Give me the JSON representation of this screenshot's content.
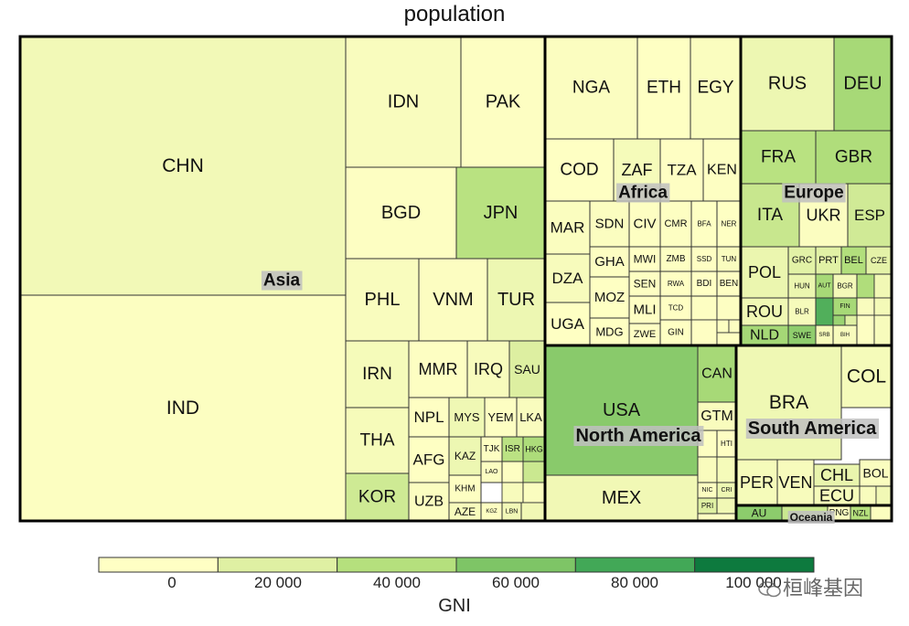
{
  "chart_data": {
    "type": "treemap",
    "title": "population",
    "fill_variable": "GNI",
    "legend": {
      "title": "GNI",
      "ticks": [
        "0",
        "20 000",
        "40 000",
        "60 000",
        "80 000",
        "100 000"
      ],
      "colors": [
        "#ffffc4",
        "#dff0a3",
        "#b5e07d",
        "#7ec566",
        "#42a857",
        "#0d7a3e"
      ]
    },
    "regions": [
      {
        "name": "Asia",
        "countries": [
          {
            "code": "CHN",
            "gni": 8000
          },
          {
            "code": "IND",
            "gni": 1800
          },
          {
            "code": "IDN",
            "gni": 3500
          },
          {
            "code": "PAK",
            "gni": 1500
          },
          {
            "code": "BGD",
            "gni": 1300
          },
          {
            "code": "JPN",
            "gni": 38000
          },
          {
            "code": "PHL",
            "gni": 3600
          },
          {
            "code": "VNM",
            "gni": 2100
          },
          {
            "code": "TUR",
            "gni": 11000
          },
          {
            "code": "IRN",
            "gni": 6000
          },
          {
            "code": "THA",
            "gni": 5900
          },
          {
            "code": "KOR",
            "gni": 28000
          },
          {
            "code": "MMR",
            "gni": 1200
          },
          {
            "code": "IRQ",
            "gni": 5000
          },
          {
            "code": "SAU",
            "gni": 21000
          },
          {
            "code": "NPL",
            "gni": 800
          },
          {
            "code": "MYS",
            "gni": 10000
          },
          {
            "code": "YEM",
            "gni": 1000
          },
          {
            "code": "LKA",
            "gni": 3800
          },
          {
            "code": "AFG",
            "gni": 600
          },
          {
            "code": "KAZ",
            "gni": 11000
          },
          {
            "code": "TJK",
            "gni": 1100
          },
          {
            "code": "ISR",
            "gni": 37000
          },
          {
            "code": "HKG",
            "gni": 43000
          },
          {
            "code": "UZB",
            "gni": 2200
          },
          {
            "code": "KHM",
            "gni": 1200
          },
          {
            "code": "LAO",
            "gni": 2000
          },
          {
            "code": "AZE",
            "gni": 4800
          },
          {
            "code": "KGZ",
            "gni": 1100
          },
          {
            "code": "LBN",
            "gni": 8000
          }
        ]
      },
      {
        "name": "Africa",
        "countries": [
          {
            "code": "NGA",
            "gni": 2500
          },
          {
            "code": "ETH",
            "gni": 600
          },
          {
            "code": "EGY",
            "gni": 3000
          },
          {
            "code": "COD",
            "gni": 400
          },
          {
            "code": "ZAF",
            "gni": 6000
          },
          {
            "code": "TZA",
            "gni": 900
          },
          {
            "code": "KEN",
            "gni": 1400
          },
          {
            "code": "MAR",
            "gni": 2900
          },
          {
            "code": "SDN",
            "gni": 2400
          },
          {
            "code": "CIV",
            "gni": 1500
          },
          {
            "code": "CMR",
            "gni": 1300
          },
          {
            "code": "BFA",
            "gni": 600
          },
          {
            "code": "NER",
            "gni": 400
          },
          {
            "code": "DZA",
            "gni": 4800
          },
          {
            "code": "GHA",
            "gni": 1500
          },
          {
            "code": "MWI",
            "gni": 300
          },
          {
            "code": "ZMB",
            "gni": 1500
          },
          {
            "code": "SSD",
            "gni": 800
          },
          {
            "code": "TUN",
            "gni": 3500
          },
          {
            "code": "SEN",
            "gni": 1000
          },
          {
            "code": "RWA",
            "gni": 700
          },
          {
            "code": "BDI",
            "gni": 300
          },
          {
            "code": "BEN",
            "gni": 800
          },
          {
            "code": "MOZ",
            "gni": 500
          },
          {
            "code": "MLI",
            "gni": 800
          },
          {
            "code": "TCD",
            "gni": 700
          },
          {
            "code": "UGA",
            "gni": 600
          },
          {
            "code": "MDG",
            "gni": 400
          },
          {
            "code": "ZWE",
            "gni": 900
          },
          {
            "code": "GIN",
            "gni": 500
          }
        ]
      },
      {
        "name": "Europe",
        "countries": [
          {
            "code": "RUS",
            "gni": 11000
          },
          {
            "code": "DEU",
            "gni": 45000
          },
          {
            "code": "FRA",
            "gni": 38000
          },
          {
            "code": "GBR",
            "gni": 42000
          },
          {
            "code": "ITA",
            "gni": 31000
          },
          {
            "code": "UKR",
            "gni": 2200
          },
          {
            "code": "ESP",
            "gni": 27000
          },
          {
            "code": "POL",
            "gni": 12500
          },
          {
            "code": "GRC",
            "gni": 18000
          },
          {
            "code": "PRT",
            "gni": 19000
          },
          {
            "code": "BEL",
            "gni": 41000
          },
          {
            "code": "CZE",
            "gni": 17000
          },
          {
            "code": "HUN",
            "gni": 12500
          },
          {
            "code": "AUT",
            "gni": 45000
          },
          {
            "code": "BGR",
            "gni": 7500
          },
          {
            "code": "ROU",
            "gni": 9500
          },
          {
            "code": "BLR",
            "gni": 5500
          },
          {
            "code": "FIN",
            "gni": 45000
          },
          {
            "code": "NLD",
            "gni": 46000
          },
          {
            "code": "SWE",
            "gni": 54000
          },
          {
            "code": "SRB",
            "gni": 5200
          },
          {
            "code": "BIH",
            "gni": 4800
          }
        ]
      },
      {
        "name": "North America",
        "countries": [
          {
            "code": "USA",
            "gni": 56000
          },
          {
            "code": "MEX",
            "gni": 9000
          },
          {
            "code": "CAN",
            "gni": 45000
          },
          {
            "code": "GTM",
            "gni": 4000
          },
          {
            "code": "HTI",
            "gni": 800
          },
          {
            "code": "NIC",
            "gni": 2000
          },
          {
            "code": "CRI",
            "gni": 11000
          },
          {
            "code": "PRI",
            "gni": 20000
          }
        ]
      },
      {
        "name": "South America",
        "countries": [
          {
            "code": "BRA",
            "gni": 10000
          },
          {
            "code": "COL",
            "gni": 6000
          },
          {
            "code": "PER",
            "gni": 6000
          },
          {
            "code": "VEN",
            "gni": 5000
          },
          {
            "code": "CHL",
            "gni": 14000
          },
          {
            "code": "ECU",
            "gni": 6000
          },
          {
            "code": "BOL",
            "gni": 3000
          }
        ]
      },
      {
        "name": "Oceania",
        "countries": [
          {
            "code": "AU",
            "gni": 55000
          },
          {
            "code": "PNG",
            "gni": 2500
          },
          {
            "code": "NZL",
            "gni": 40000
          }
        ]
      }
    ]
  },
  "watermark": "桓峰基因"
}
